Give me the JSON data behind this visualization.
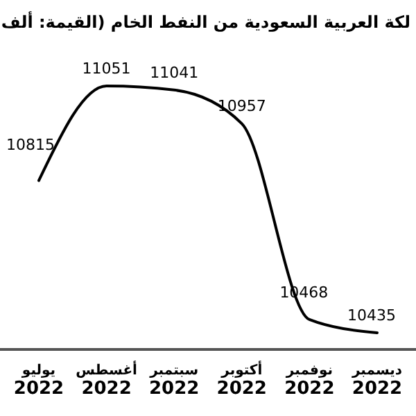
{
  "chart_data": {
    "type": "line",
    "title": "لكة العربية السعودية من النفط الخام (القيمة: ألف",
    "categories": [
      "يوليو 2022",
      "أغسطس 2022",
      "سبتمبر 2022",
      "أكتوبر 2022",
      "نوفمبر 2022",
      "ديسمبر 2022"
    ],
    "series": [
      {
        "color": "#000000",
        "values": [
          10815,
          11051,
          11041,
          10957,
          10468,
          10435
        ]
      }
    ],
    "data_labels": true,
    "grid": false,
    "marker": "none",
    "line_style": "solid"
  }
}
